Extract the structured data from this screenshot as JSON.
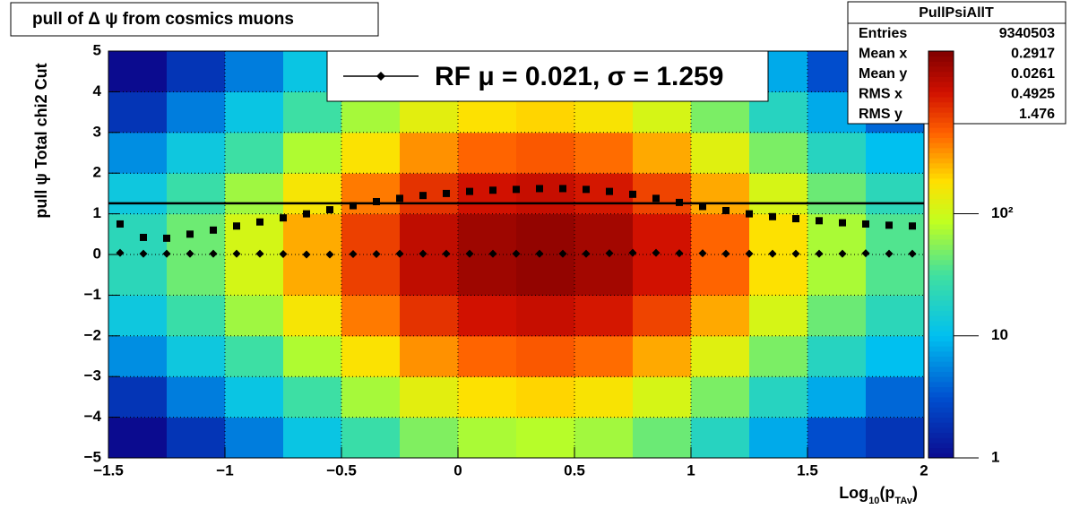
{
  "chart_data": {
    "type": "heatmap",
    "title": "pull of Δ ψ from cosmics muons",
    "ylabel": "pull ψ    Total chi2 Cut",
    "xlabel": [
      "Log",
      "10",
      "(p",
      "TAv",
      ")"
    ],
    "xlim": [
      -1.5,
      2
    ],
    "ylim": [
      -5,
      5
    ],
    "zlim": [
      1,
      2150
    ],
    "zscale": "log",
    "grid": true,
    "xticks": [
      {
        "value": -1.5,
        "label": "−1.5"
      },
      {
        "value": -1,
        "label": "−1"
      },
      {
        "value": -0.5,
        "label": "−0.5"
      },
      0,
      0.5,
      1,
      1.5,
      2
    ],
    "yticks": [
      {
        "value": -5,
        "label": "−5"
      },
      {
        "value": -4,
        "label": "−4"
      },
      {
        "value": -3,
        "label": "−3"
      },
      {
        "value": -2,
        "label": "−2"
      },
      {
        "value": -1,
        "label": "−1"
      },
      0,
      1,
      2,
      3,
      4,
      5
    ],
    "zticks": [
      1,
      10,
      {
        "value": 100,
        "label": "10²"
      }
    ],
    "xbins": [
      -1.5,
      -1.25,
      -1,
      -0.75,
      -0.5,
      -0.25,
      0,
      0.25,
      0.5,
      0.75,
      1,
      1.25,
      1.5,
      1.75,
      2
    ],
    "ybins": [
      -5,
      -4,
      -3,
      -2,
      -1,
      0,
      1,
      2,
      3,
      4,
      5
    ],
    "z": [
      [
        1,
        2,
        5,
        12,
        28,
        52,
        72,
        80,
        68,
        44,
        20,
        8,
        3,
        2
      ],
      [
        2,
        5,
        12,
        30,
        70,
        130,
        180,
        200,
        170,
        110,
        50,
        20,
        8,
        4
      ],
      [
        6,
        13,
        30,
        75,
        175,
        325,
        450,
        500,
        425,
        275,
        125,
        50,
        20,
        10
      ],
      [
        13,
        28,
        66,
        165,
        385,
        715,
        990,
        1100,
        935,
        605,
        275,
        110,
        44,
        22
      ],
      [
        22,
        45,
        108,
        270,
        630,
        1170,
        1620,
        1800,
        1530,
        990,
        450,
        180,
        72,
        36
      ],
      [
        22,
        45,
        108,
        270,
        630,
        1170,
        1620,
        1800,
        1530,
        990,
        450,
        180,
        72,
        36
      ],
      [
        13,
        28,
        66,
        165,
        385,
        715,
        990,
        1100,
        935,
        605,
        275,
        110,
        44,
        22
      ],
      [
        6,
        13,
        30,
        75,
        175,
        325,
        450,
        500,
        425,
        275,
        125,
        50,
        20,
        10
      ],
      [
        2,
        5,
        12,
        30,
        70,
        130,
        180,
        200,
        170,
        110,
        50,
        20,
        8,
        4
      ],
      [
        1,
        2,
        5,
        12,
        28,
        52,
        72,
        80,
        68,
        44,
        20,
        8,
        3,
        2
      ]
    ],
    "profile_x": [
      -1.45,
      -1.35,
      -1.25,
      -1.15,
      -1.05,
      -0.95,
      -0.85,
      -0.75,
      -0.65,
      -0.55,
      -0.45,
      -0.35,
      -0.25,
      -0.15,
      -0.05,
      0.05,
      0.15,
      0.25,
      0.35,
      0.45,
      0.55,
      0.65,
      0.75,
      0.85,
      0.95,
      1.05,
      1.15,
      1.25,
      1.35,
      1.45,
      1.55,
      1.65,
      1.75,
      1.85,
      1.95
    ],
    "series": [
      {
        "marker": "diamond",
        "color": "#000000",
        "values": [
          0.04,
          0.02,
          0.02,
          0.02,
          0.02,
          0.02,
          0.02,
          0.01,
          0.0,
          0.0,
          0.01,
          0.01,
          0.02,
          0.02,
          0.02,
          0.02,
          0.02,
          0.02,
          0.02,
          0.02,
          0.02,
          0.03,
          0.04,
          0.04,
          0.03,
          0.03,
          0.02,
          0.02,
          0.02,
          0.02,
          0.02,
          0.02,
          0.03,
          0.02,
          0.02
        ]
      },
      {
        "marker": "square",
        "color": "#000000",
        "values": [
          0.75,
          0.42,
          0.4,
          0.5,
          0.6,
          0.7,
          0.8,
          0.9,
          1.0,
          1.1,
          1.2,
          1.3,
          1.38,
          1.45,
          1.5,
          1.55,
          1.58,
          1.6,
          1.62,
          1.62,
          1.6,
          1.55,
          1.48,
          1.38,
          1.28,
          1.18,
          1.08,
          1.0,
          0.93,
          0.88,
          0.83,
          0.78,
          0.75,
          0.72,
          0.7
        ]
      }
    ],
    "fit_sigma": 1.259,
    "legend_label": "RF μ =  0.021, σ =   1.259",
    "stats": {
      "title": "PullPsiAllT",
      "rows": [
        [
          "Entries",
          9340503
        ],
        [
          "Mean x",
          0.2917
        ],
        [
          "Mean y",
          0.0261
        ],
        [
          "RMS x",
          0.4925
        ],
        [
          "RMS y",
          1.476
        ]
      ]
    }
  }
}
